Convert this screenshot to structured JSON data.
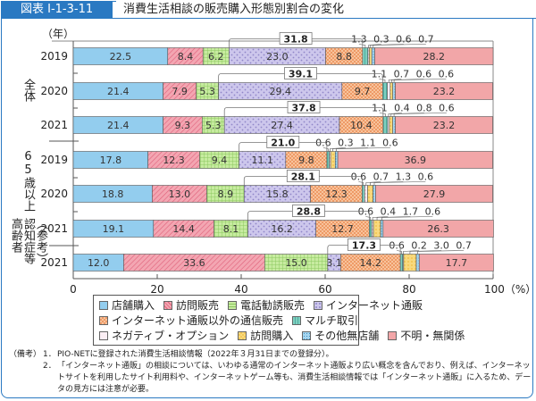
{
  "header": {
    "figure_id": "図表 I-1-3-11",
    "title": "消費生活相談の販売購入形態別割合の変化"
  },
  "chart_data": {
    "type": "bar",
    "orientation": "horizontal",
    "stacked": true,
    "unit_label": "（年）",
    "xlim": [
      0,
      100
    ],
    "x_ticks": [
      "0",
      "20",
      "40",
      "60",
      "80",
      "100（%）"
    ],
    "categories": [
      "店舗購入",
      "訪問販売",
      "電話勧誘販売",
      "インターネット通販",
      "インターネット通販以外の通信販売",
      "マルチ取引",
      "ネガティブ・オプション",
      "訪問購入",
      "その他無店舗",
      "不明・無関係"
    ],
    "colors": [
      "#93cdee",
      "#f3a6b2",
      "#b9e08e",
      "#c9c3ea",
      "#f6b487",
      "#7fcfc0",
      "#f6e0ec",
      "#f8d97e",
      "#8fcbea",
      "#f2a6a8"
    ],
    "groups": [
      {
        "label": "全体",
        "lines": [
          "全体"
        ]
      },
      {
        "label": "65歳以上",
        "lines": [
          "65歳以上"
        ]
      },
      {
        "label": "（参考）認知症等高齢者",
        "lines": [
          "（参考）",
          "認知症等",
          "高齢者"
        ]
      }
    ],
    "rows": [
      {
        "group": 0,
        "year": "2019",
        "values": [
          22.5,
          8.4,
          6.2,
          23.0,
          8.8,
          1.3,
          0.3,
          0.6,
          0.7,
          28.2
        ],
        "bracket_total": 31.8
      },
      {
        "group": 0,
        "year": "2020",
        "values": [
          21.4,
          7.9,
          5.3,
          29.4,
          9.7,
          1.1,
          0.7,
          0.6,
          0.6,
          23.2
        ],
        "bracket_total": 39.1
      },
      {
        "group": 0,
        "year": "2021",
        "values": [
          21.4,
          9.3,
          5.3,
          27.4,
          10.4,
          1.1,
          0.4,
          0.8,
          0.6,
          23.2
        ],
        "bracket_total": 37.8
      },
      {
        "group": 1,
        "year": "2019",
        "values": [
          17.8,
          12.3,
          9.4,
          11.1,
          9.8,
          0.6,
          0.3,
          1.1,
          0.6,
          36.9
        ],
        "bracket_total": 21.0
      },
      {
        "group": 1,
        "year": "2020",
        "values": [
          18.8,
          13.0,
          8.9,
          15.8,
          12.3,
          0.6,
          0.7,
          1.3,
          0.6,
          27.9
        ],
        "bracket_total": 28.1
      },
      {
        "group": 1,
        "year": "2021",
        "values": [
          19.1,
          14.4,
          8.1,
          16.2,
          12.7,
          0.6,
          0.4,
          1.7,
          0.6,
          26.3
        ],
        "bracket_total": 28.8
      },
      {
        "group": 2,
        "year": "2021",
        "values": [
          12.0,
          33.6,
          15.0,
          3.1,
          14.2,
          0.6,
          0.2,
          3.0,
          0.7,
          17.7
        ],
        "bracket_total": 17.3
      }
    ],
    "legend_position": "bottom",
    "grid": false
  },
  "notes": {
    "heading": "（備考）",
    "items": [
      {
        "num": "1．",
        "text": "PIO-NETに登録された消費生活相談情報（2022年３月31日までの登録分）。"
      },
      {
        "num": "2．",
        "text": "「インターネット通販」の相談については、いわゆる通常のインターネット通販より広い概念を含んでおり、例えば、インターネットサイトを利用したサイト利用料や、インターネットゲーム等も、消費生活相談情報では「インターネット通販」に入るため、データの見方には注意が必要。"
      }
    ]
  }
}
